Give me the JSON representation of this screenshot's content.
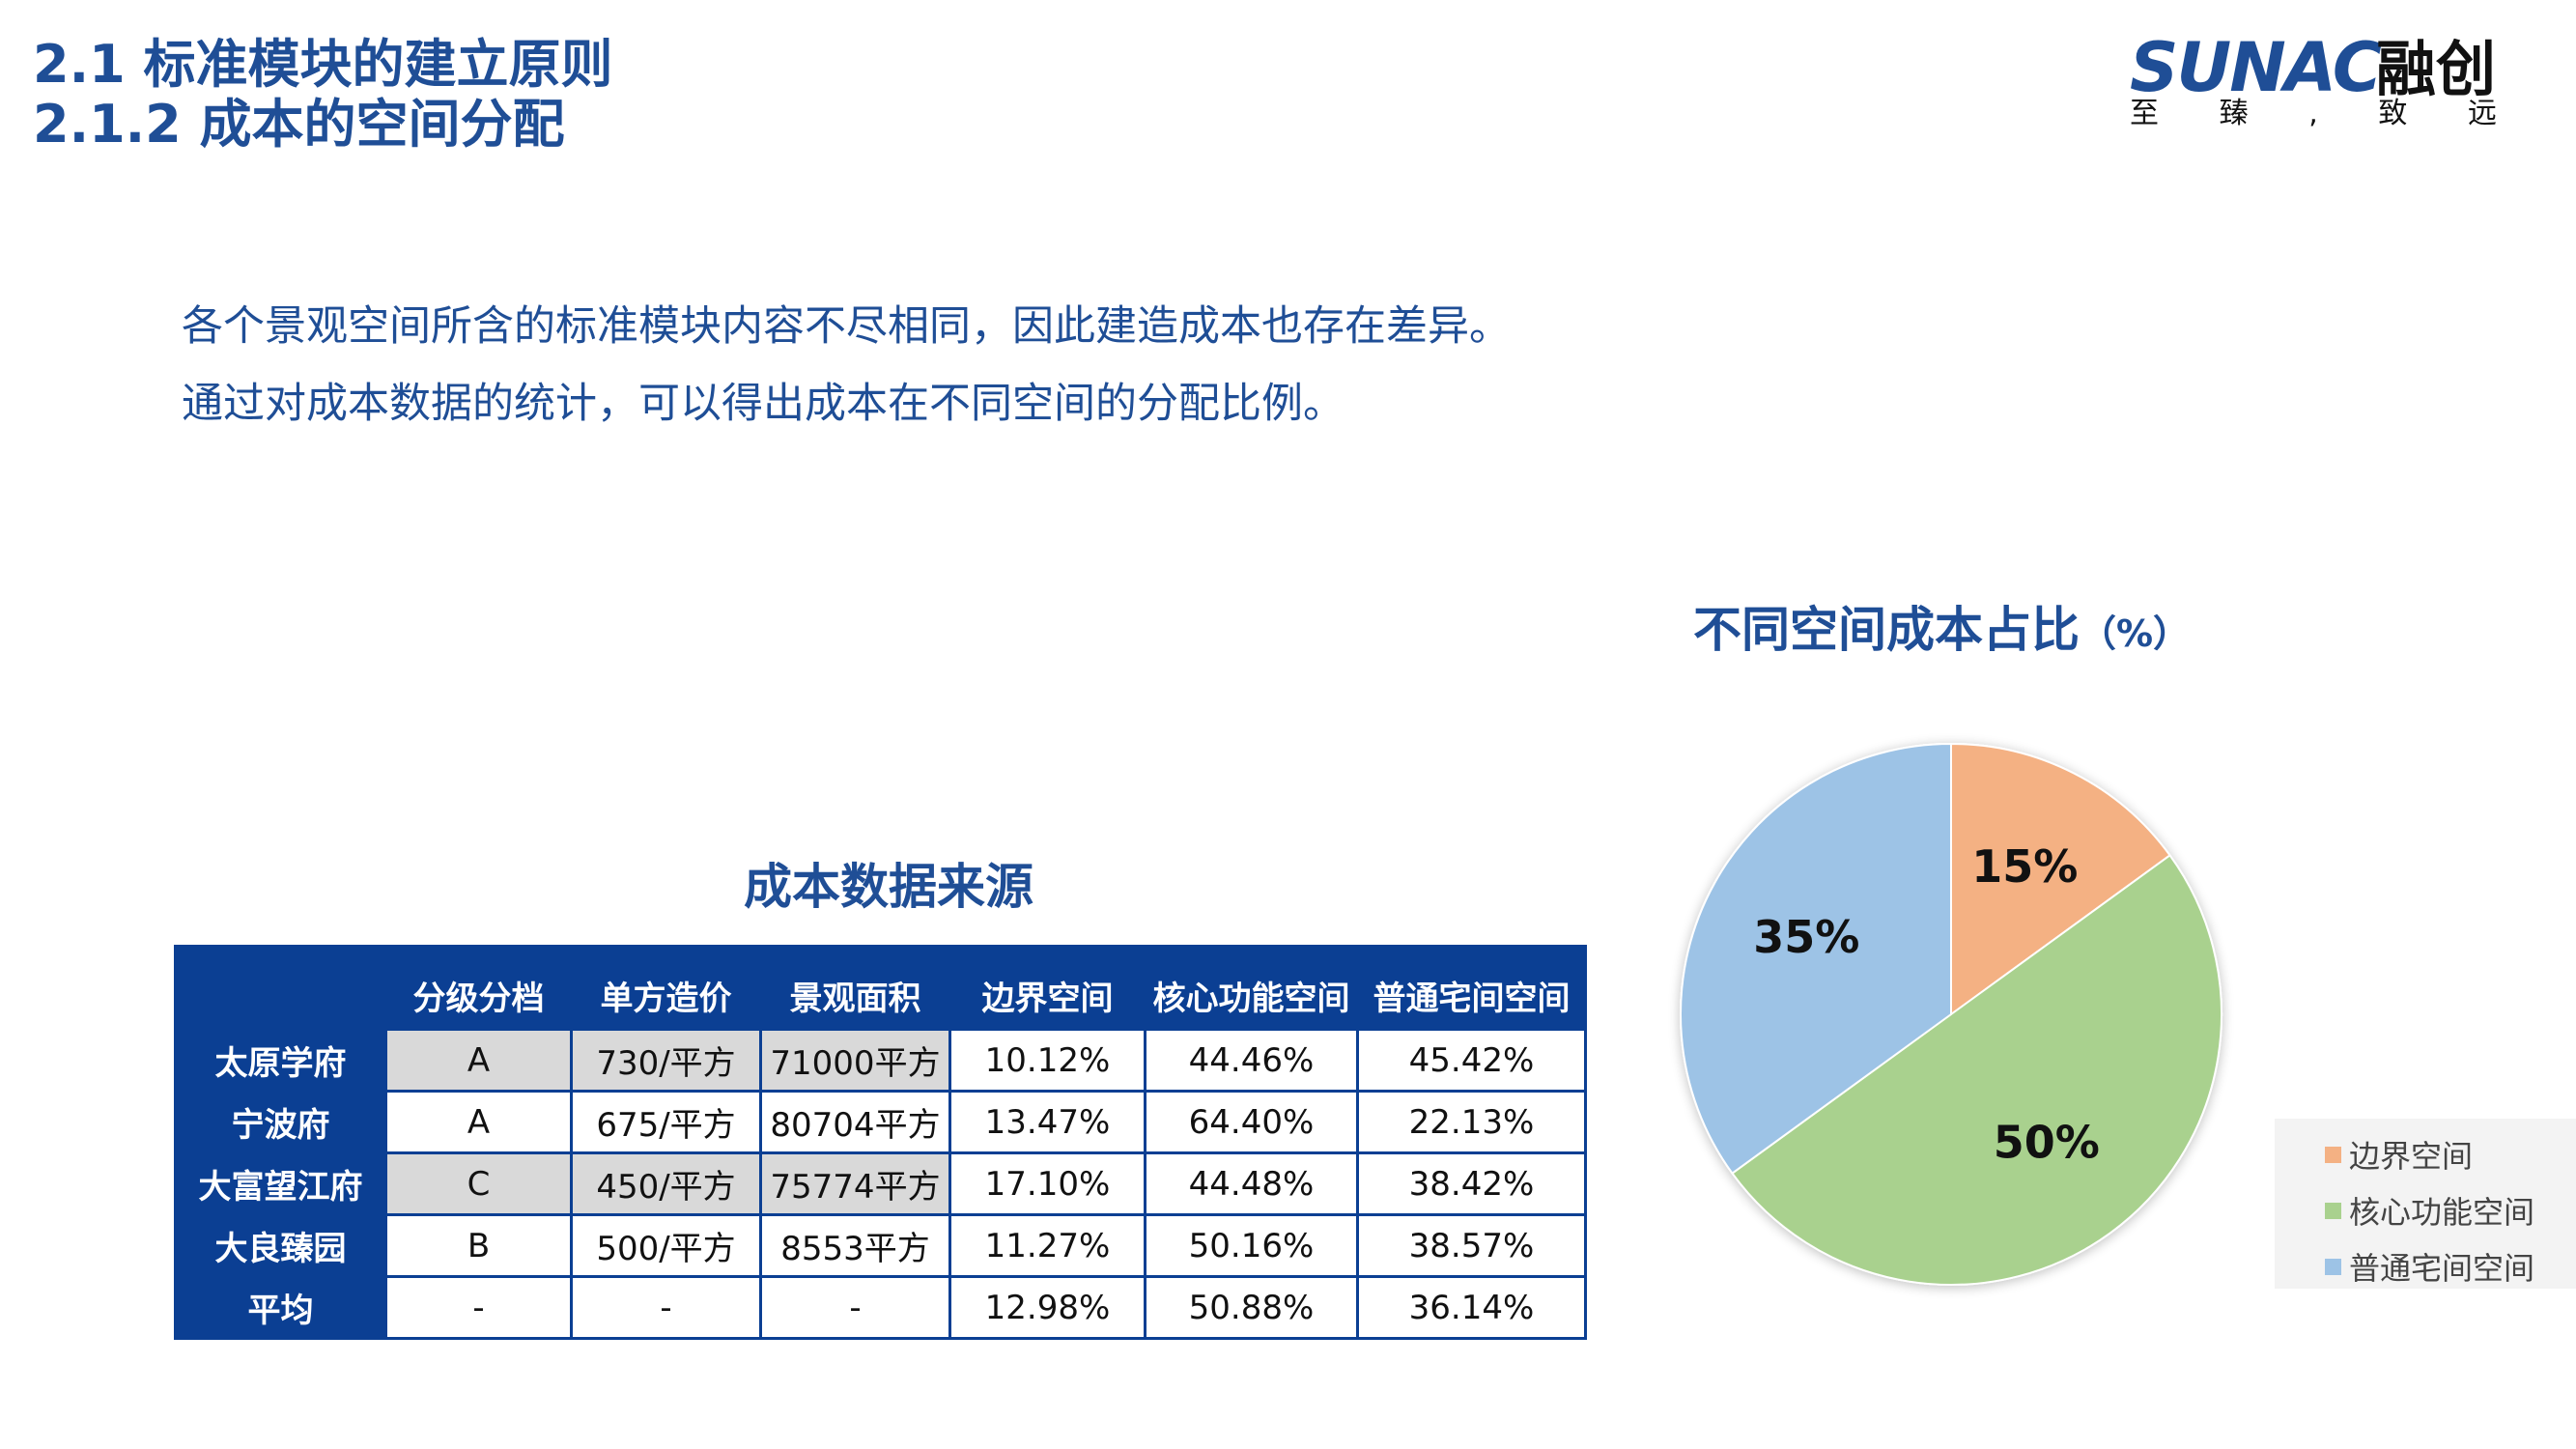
{
  "header": {
    "title_line1": "2.1 标准模块的建立原则",
    "title_line2": "2.1.2 成本的空间分配"
  },
  "logo": {
    "brand_en": "SUNAC",
    "brand_cn": "融创",
    "motto": [
      "至",
      "臻",
      ",",
      "致",
      "远"
    ]
  },
  "intro": {
    "line1": "各个景观空间所含的标准模块内容不尽相同，因此建造成本也存在差异。",
    "line2": "通过对成本数据的统计，可以得出成本在不同空间的分配比例。"
  },
  "table": {
    "title": "成本数据来源",
    "headers": [
      "",
      "分级分档",
      "单方造价",
      "景观面积",
      "边界空间",
      "核心功能空间",
      "普通宅间空间"
    ],
    "rows": [
      {
        "name": "太原学府",
        "cells": [
          "A",
          "730/平方",
          "71000平方",
          "10.12%",
          "44.46%",
          "45.42%"
        ]
      },
      {
        "name": "宁波府",
        "cells": [
          "A",
          "675/平方",
          "80704平方",
          "13.47%",
          "64.40%",
          "22.13%"
        ]
      },
      {
        "name": "大富望江府",
        "cells": [
          "C",
          "450/平方",
          "75774平方",
          "17.10%",
          "44.48%",
          "38.42%"
        ]
      },
      {
        "name": "大良臻园",
        "cells": [
          "B",
          "500/平方",
          "8553平方",
          "11.27%",
          "50.16%",
          "38.57%"
        ]
      },
      {
        "name": "平均",
        "cells": [
          "-",
          "-",
          "-",
          "12.98%",
          "50.88%",
          "36.14%"
        ]
      }
    ]
  },
  "chart_data": {
    "type": "pie",
    "title": "不同空间成本占比",
    "title_unit": "（%）",
    "categories": [
      "边界空间",
      "核心功能空间",
      "普通宅间空间"
    ],
    "values": [
      15,
      50,
      35
    ],
    "labels": [
      "15%",
      "50%",
      "35%"
    ],
    "colors": [
      "#f4b183",
      "#a9d18e",
      "#9dc3e6"
    ],
    "legend_position": "bottom-right"
  }
}
